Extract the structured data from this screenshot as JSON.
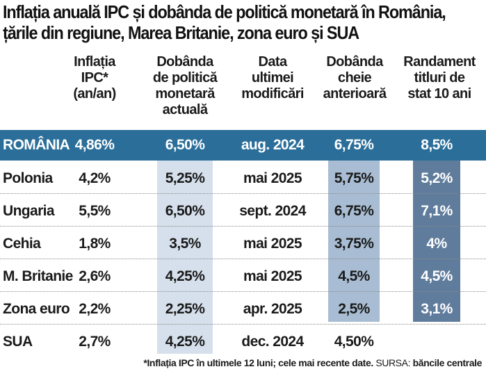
{
  "title": {
    "line1": "Inflația anuală IPC și dobânda de politică monetară în România,",
    "line2": "țările din regiune, Marea Britanie, zona euro și SUA"
  },
  "headers": {
    "col1": [
      "Inflația",
      "IPC*",
      "(an/an)"
    ],
    "col2": [
      "Dobânda",
      "de politică",
      "monetară",
      "actuală"
    ],
    "col3": [
      "Data",
      "ultimei",
      "modificări"
    ],
    "col4": [
      "Dobânda",
      "cheie",
      "anterioară"
    ],
    "col5": [
      "Randament",
      "titluri de",
      "stat 10 ani"
    ]
  },
  "rows": [
    {
      "country": "ROMÂNIA",
      "inflation": "4,86%",
      "rate": "6,50%",
      "date": "aug. 2024",
      "previous": "6,75%",
      "yield": "8,5%"
    },
    {
      "country": "Polonia",
      "inflation": "4,2%",
      "rate": "5,25%",
      "date": "mai 2025",
      "previous": "5,75%",
      "yield": "5,2%"
    },
    {
      "country": "Ungaria",
      "inflation": "5,5%",
      "rate": "6,50%",
      "date": "sept. 2024",
      "previous": "6,75%",
      "yield": "7,1%"
    },
    {
      "country": "Cehia",
      "inflation": "1,8%",
      "rate": "3,5%",
      "date": "mai 2025",
      "previous": "3,75%",
      "yield": "4%"
    },
    {
      "country": "M. Britanie",
      "inflation": "2,6%",
      "rate": "4,25%",
      "date": "mai 2025",
      "previous": "4,5%",
      "yield": "4,5%"
    },
    {
      "country": "Zona euro",
      "inflation": "2,2%",
      "rate": "2,25%",
      "date": "apr. 2025",
      "previous": "2,5%",
      "yield": "3,1%"
    },
    {
      "country": "SUA",
      "inflation": "2,7%",
      "rate": "4,25%",
      "date": "dec. 2024",
      "previous": "4,50%",
      "yield": ""
    }
  ],
  "footnote": {
    "note": "*Inflația IPC în ultimele 12 luni; cele mai recente date.",
    "source_label": "SURSA:",
    "source": "băncile centrale"
  },
  "colors": {
    "romania_band": "#2a6e99",
    "shade_light": "#d6e0ec",
    "shade_mid": "#a8bdd3",
    "shade_dark": "#5f7c9c"
  }
}
